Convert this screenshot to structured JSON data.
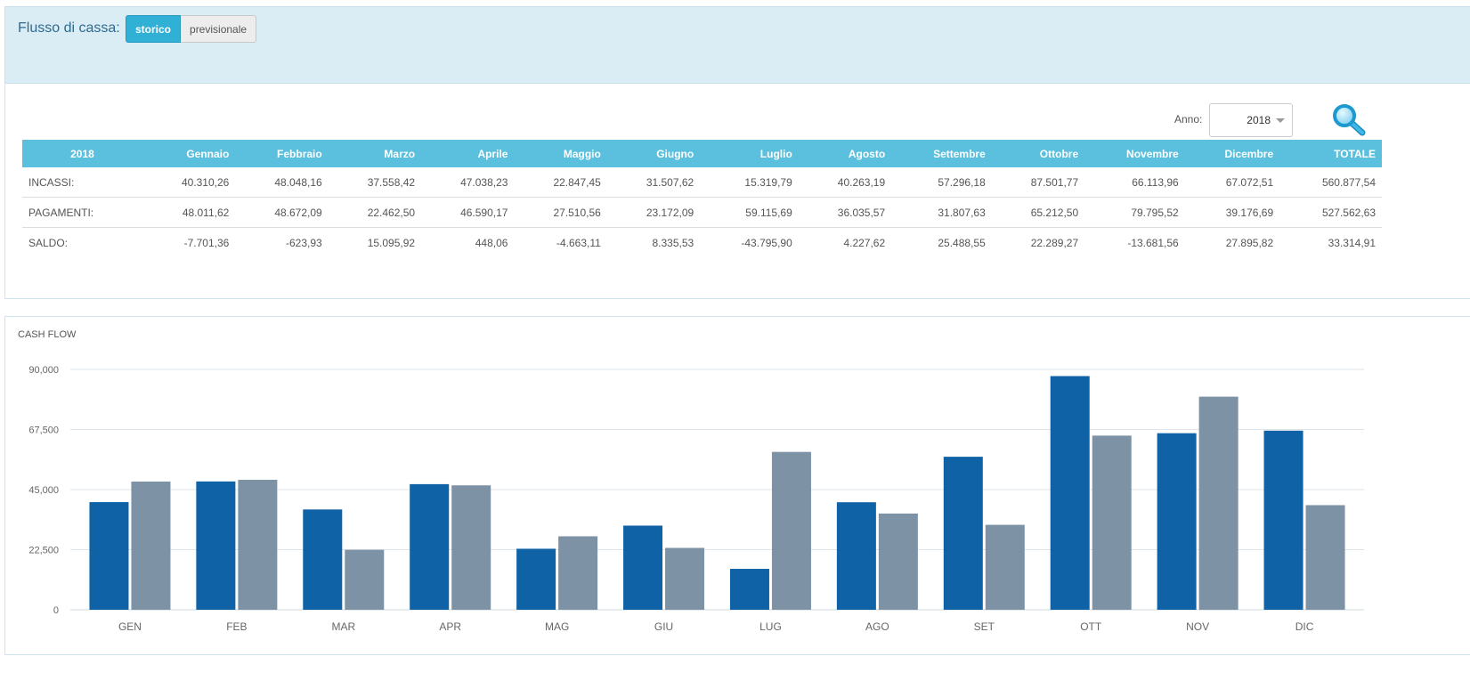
{
  "header": {
    "title": "Flusso di cassa:",
    "tabs": [
      {
        "label": "storico",
        "active": true
      },
      {
        "label": "previsionale",
        "active": false
      }
    ]
  },
  "filters": {
    "anno_label": "Anno:",
    "anno_value": "2018",
    "search_icon": "search-icon"
  },
  "table": {
    "headers": [
      "2018",
      "Gennaio",
      "Febbraio",
      "Marzo",
      "Aprile",
      "Maggio",
      "Giugno",
      "Luglio",
      "Agosto",
      "Settembre",
      "Ottobre",
      "Novembre",
      "Dicembre",
      "TOTALE"
    ],
    "rows": [
      [
        "INCASSI:",
        "40.310,26",
        "48.048,16",
        "37.558,42",
        "47.038,23",
        "22.847,45",
        "31.507,62",
        "15.319,79",
        "40.263,19",
        "57.296,18",
        "87.501,77",
        "66.113,96",
        "67.072,51",
        "560.877,54"
      ],
      [
        "PAGAMENTI:",
        "48.011,62",
        "48.672,09",
        "22.462,50",
        "46.590,17",
        "27.510,56",
        "23.172,09",
        "59.115,69",
        "36.035,57",
        "31.807,63",
        "65.212,50",
        "79.795,52",
        "39.176,69",
        "527.562,63"
      ],
      [
        "SALDO:",
        "-7.701,36",
        "-623,93",
        "15.095,92",
        "448,06",
        "-4.663,11",
        "8.335,53",
        "-43.795,90",
        "4.227,62",
        "25.488,55",
        "22.289,27",
        "-13.681,56",
        "27.895,82",
        "33.314,91"
      ]
    ]
  },
  "chart_data": {
    "type": "bar",
    "title": "CASH FLOW",
    "categories": [
      "GEN",
      "FEB",
      "MAR",
      "APR",
      "MAG",
      "GIU",
      "LUG",
      "AGO",
      "SET",
      "OTT",
      "NOV",
      "DIC"
    ],
    "series": [
      {
        "values": [
          40310.26,
          48048.16,
          37558.42,
          47038.23,
          22847.45,
          31507.62,
          15319.79,
          40263.19,
          57296.18,
          87501.77,
          66113.96,
          67072.51
        ],
        "color": "#0f62a5"
      },
      {
        "values": [
          48011.62,
          48672.09,
          22462.5,
          46590.17,
          27510.56,
          23172.09,
          59115.69,
          36035.57,
          31807.63,
          65212.5,
          79795.52,
          39176.69
        ],
        "color": "#7d92a5"
      }
    ],
    "ylim": [
      0,
      90000
    ],
    "yticks": [
      0,
      22500,
      45000,
      67500,
      90000
    ],
    "ytick_labels": [
      "0",
      "22,500",
      "45,000",
      "67,500",
      "90,000"
    ],
    "grid": true,
    "xlabel": "",
    "ylabel": ""
  }
}
